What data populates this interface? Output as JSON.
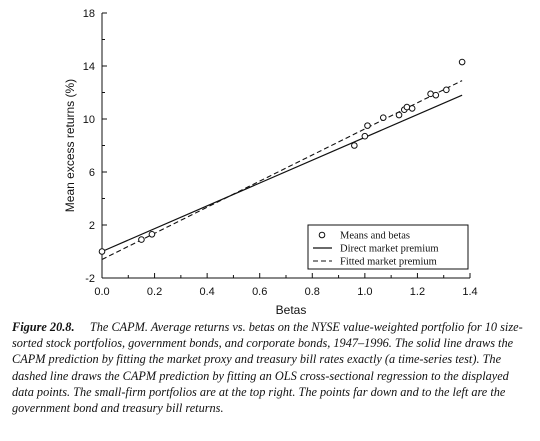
{
  "chart_data": {
    "type": "scatter",
    "title": "",
    "xlabel": "Betas",
    "ylabel": "Mean excess returns (%)",
    "xlim": [
      0,
      1.4
    ],
    "ylim": [
      -2,
      18
    ],
    "xticks": [
      "0.0",
      "0.2",
      "0.4",
      "0.6",
      "0.8",
      "1.0",
      "1.2",
      "1.4"
    ],
    "xtick_values": [
      0.0,
      0.2,
      0.4,
      0.6,
      0.8,
      1.0,
      1.2,
      1.4
    ],
    "yticks": [
      "-2",
      "2",
      "6",
      "10",
      "14",
      "18"
    ],
    "ytick_values": [
      -2,
      2,
      6,
      10,
      14,
      18
    ],
    "grid": false,
    "legend_position": "bottom-right",
    "legend": [
      {
        "label": "Means and betas",
        "marker": "circle"
      },
      {
        "label": "Direct market premium",
        "style": "solid"
      },
      {
        "label": "Fitted market premium",
        "style": "dashed"
      }
    ],
    "series": [
      {
        "name": "Means and betas",
        "kind": "points",
        "x": [
          0.0,
          0.15,
          0.19,
          0.96,
          1.0,
          1.01,
          1.07,
          1.13,
          1.15,
          1.16,
          1.18,
          1.25,
          1.27,
          1.31,
          1.37
        ],
        "y": [
          0.0,
          0.9,
          1.3,
          8.0,
          8.7,
          9.5,
          10.1,
          10.3,
          10.7,
          10.9,
          10.8,
          11.9,
          11.8,
          12.2,
          14.3
        ]
      },
      {
        "name": "Direct market premium",
        "kind": "line",
        "x": [
          0.0,
          1.37
        ],
        "y": [
          0.0,
          11.8
        ]
      },
      {
        "name": "Fitted market premium",
        "kind": "line",
        "x": [
          0.0,
          1.37
        ],
        "y": [
          -0.6,
          12.9
        ]
      }
    ]
  },
  "caption": {
    "label": "Figure 20.8.",
    "text": "The CAPM. Average returns vs. betas on the NYSE value-weighted portfolio for 10 size-sorted stock portfolios, government bonds, and corporate bonds, 1947–1996. The solid line draws the CAPM prediction by fitting the market proxy and treasury bill rates exactly (a time-series test). The dashed line draws the CAPM prediction by fitting an OLS cross-sectional regression to the displayed data points. The small-firm portfolios are at the top right. The points far down and to the left are the government bond and treasury bill returns."
  }
}
